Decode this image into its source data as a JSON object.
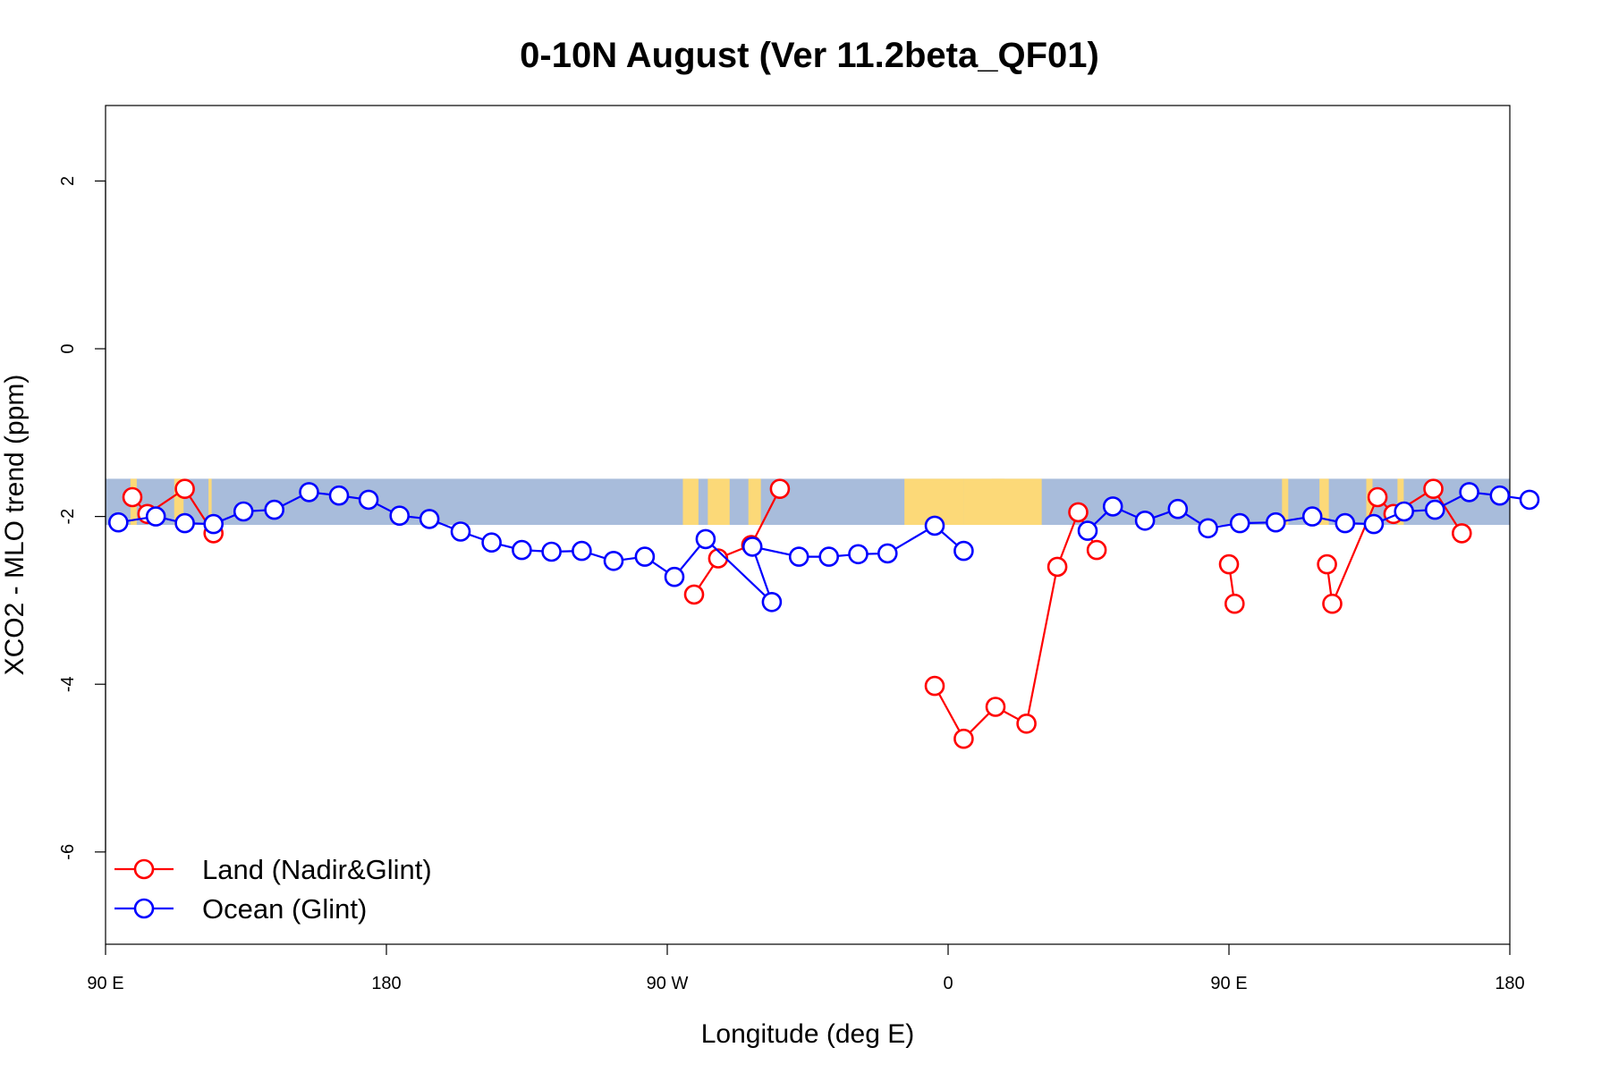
{
  "chart_data": {
    "type": "line",
    "title": "0-10N August (Ver 11.2beta_QF01)",
    "xlabel": "Longitude (deg E)",
    "ylabel": "XCO2 - MLO trend (ppm)",
    "xlim": [
      90,
      540
    ],
    "ylim": [
      -7.1,
      2.9
    ],
    "x_ticks": [
      {
        "value": 90,
        "label": "90 E"
      },
      {
        "value": 180,
        "label": "180"
      },
      {
        "value": 270,
        "label": "90 W"
      },
      {
        "value": 360,
        "label": "0"
      },
      {
        "value": 450,
        "label": "90 E"
      },
      {
        "value": 540,
        "label": "180"
      }
    ],
    "y_ticks": [
      {
        "value": 2,
        "label": "2"
      },
      {
        "value": 0,
        "label": "0"
      },
      {
        "value": -2,
        "label": "-2"
      },
      {
        "value": -4,
        "label": "-4"
      },
      {
        "value": -6,
        "label": "-6"
      }
    ],
    "map_band": {
      "y_range": [
        -2.1,
        -1.55
      ],
      "ocean_color": "#a8bcdb",
      "land_color": "#fcd978",
      "land_regions": [
        [
          98,
          100
        ],
        [
          112,
          115
        ],
        [
          123,
          124
        ],
        [
          275,
          280
        ],
        [
          283,
          290
        ],
        [
          296,
          300
        ],
        [
          346,
          365
        ],
        [
          365,
          378
        ],
        [
          374,
          390
        ],
        [
          467,
          469
        ],
        [
          479,
          482
        ],
        [
          494,
          496
        ],
        [
          504,
          506
        ]
      ]
    },
    "legend": {
      "position": "bottom-left",
      "entries": [
        {
          "name": "Land (Nadir&Glint)",
          "color": "#ff0000"
        },
        {
          "name": "Ocean (Glint)",
          "color": "#0000ff"
        }
      ]
    },
    "series": [
      {
        "name": "Land (Nadir&Glint)",
        "color": "#ff0000",
        "segments": [
          [
            [
              98.6,
              -1.77
            ],
            [
              103.4,
              -1.97
            ],
            [
              115.4,
              -1.67
            ],
            [
              124.6,
              -2.2
            ]
          ],
          [
            [
              278.6,
              -2.93
            ],
            [
              286.3,
              -2.5
            ],
            [
              296.9,
              -2.34
            ],
            [
              306.1,
              -1.67
            ]
          ],
          [
            [
              355.7,
              -4.02
            ],
            [
              365.0,
              -4.65
            ],
            [
              375.2,
              -4.27
            ],
            [
              385.1,
              -4.47
            ],
            [
              395.0,
              -2.6
            ],
            [
              401.7,
              -1.95
            ],
            [
              407.6,
              -2.4
            ]
          ],
          [
            [
              450.0,
              -2.57
            ],
            [
              451.8,
              -3.04
            ]
          ],
          [
            [
              481.4,
              -2.57
            ],
            [
              483.1,
              -3.04
            ],
            [
              497.6,
              -1.77
            ],
            [
              502.7,
              -1.97
            ],
            [
              515.5,
              -1.67
            ],
            [
              524.6,
              -2.2
            ]
          ]
        ]
      },
      {
        "name": "Ocean (Glint)",
        "color": "#0000ff",
        "segments": [
          [
            [
              94.1,
              -2.07
            ],
            [
              106.1,
              -2.0
            ],
            [
              115.4,
              -2.08
            ],
            [
              124.6,
              -2.09
            ],
            [
              134.2,
              -1.94
            ],
            [
              144.1,
              -1.92
            ],
            [
              155.2,
              -1.71
            ],
            [
              164.8,
              -1.75
            ],
            [
              174.3,
              -1.8
            ],
            [
              184.2,
              -1.99
            ],
            [
              193.8,
              -2.03
            ],
            [
              203.8,
              -2.18
            ],
            [
              213.7,
              -2.31
            ],
            [
              223.4,
              -2.4
            ],
            [
              232.9,
              -2.42
            ],
            [
              242.6,
              -2.41
            ],
            [
              252.8,
              -2.53
            ],
            [
              262.8,
              -2.48
            ],
            [
              272.3,
              -2.72
            ],
            [
              282.3,
              -2.27
            ],
            [
              303.5,
              -3.02
            ],
            [
              297.3,
              -2.36
            ],
            [
              312.2,
              -2.48
            ],
            [
              321.8,
              -2.48
            ],
            [
              331.2,
              -2.45
            ],
            [
              340.6,
              -2.44
            ],
            [
              355.7,
              -2.11
            ],
            [
              365.0,
              -2.41
            ]
          ],
          [
            [
              404.7,
              -2.17
            ],
            [
              412.8,
              -1.88
            ],
            [
              423.1,
              -2.05
            ],
            [
              433.6,
              -1.91
            ],
            [
              443.3,
              -2.14
            ],
            [
              453.5,
              -2.08
            ],
            [
              465.0,
              -2.07
            ],
            [
              476.7,
              -2.0
            ],
            [
              487.2,
              -2.08
            ],
            [
              496.4,
              -2.09
            ],
            [
              506.1,
              -1.94
            ],
            [
              516.0,
              -1.92
            ],
            [
              527.0,
              -1.71
            ],
            [
              536.8,
              -1.75
            ],
            [
              546.3,
              -1.8
            ]
          ]
        ]
      }
    ]
  }
}
